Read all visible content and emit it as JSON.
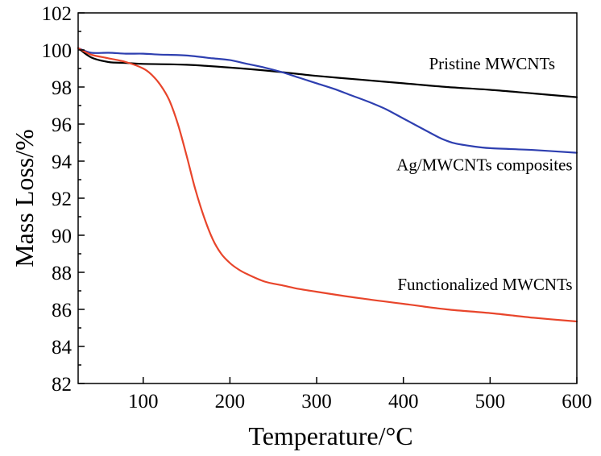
{
  "chart_data": {
    "type": "line",
    "title": "",
    "xlabel": "Temperature/°C",
    "ylabel": "Mass Loss/%",
    "xlim": [
      25,
      600
    ],
    "ylim": [
      82,
      102
    ],
    "xticks": [
      100,
      200,
      300,
      400,
      500,
      600
    ],
    "yticks": [
      82,
      84,
      86,
      88,
      90,
      92,
      94,
      96,
      98,
      100,
      102
    ],
    "grid": false,
    "series": [
      {
        "name": "Pristine MWCNTs",
        "color": "#000000",
        "x": [
          25,
          40,
          60,
          80,
          100,
          150,
          200,
          250,
          300,
          350,
          400,
          450,
          500,
          550,
          600
        ],
        "y": [
          100.1,
          99.6,
          99.35,
          99.3,
          99.25,
          99.2,
          99.05,
          98.85,
          98.6,
          98.4,
          98.2,
          98.0,
          97.85,
          97.65,
          97.45
        ]
      },
      {
        "name": "Ag/MWCNTs composites",
        "color": "#2e3fb0",
        "x": [
          25,
          40,
          60,
          80,
          100,
          120,
          150,
          180,
          200,
          220,
          240,
          260,
          280,
          300,
          320,
          340,
          360,
          380,
          400,
          420,
          440,
          450,
          460,
          480,
          500,
          550,
          600
        ],
        "y": [
          100.1,
          99.85,
          99.85,
          99.8,
          99.8,
          99.75,
          99.7,
          99.55,
          99.45,
          99.25,
          99.05,
          98.8,
          98.5,
          98.2,
          97.9,
          97.55,
          97.2,
          96.8,
          96.3,
          95.8,
          95.3,
          95.1,
          94.95,
          94.8,
          94.7,
          94.6,
          94.45
        ]
      },
      {
        "name": "Functionalized MWCNTs",
        "color": "#e8452b",
        "x": [
          25,
          40,
          60,
          80,
          100,
          110,
          120,
          130,
          140,
          150,
          160,
          170,
          180,
          190,
          200,
          210,
          220,
          240,
          260,
          280,
          300,
          350,
          400,
          450,
          500,
          550,
          600
        ],
        "y": [
          100.1,
          99.75,
          99.55,
          99.35,
          99.0,
          98.65,
          98.1,
          97.3,
          96.0,
          94.3,
          92.5,
          91.0,
          89.8,
          89.0,
          88.5,
          88.15,
          87.9,
          87.5,
          87.3,
          87.1,
          86.95,
          86.6,
          86.3,
          86.0,
          85.8,
          85.55,
          85.35
        ]
      }
    ],
    "annotations": [
      {
        "text": "Pristine MWCNTs",
        "x": 575,
        "y": 98.95,
        "anchor": "end"
      },
      {
        "text": "Ag/MWCNTs composites",
        "x": 595,
        "y": 93.5,
        "anchor": "end"
      },
      {
        "text": "Functionalized MWCNTs",
        "x": 595,
        "y": 87.05,
        "anchor": "end"
      }
    ]
  }
}
